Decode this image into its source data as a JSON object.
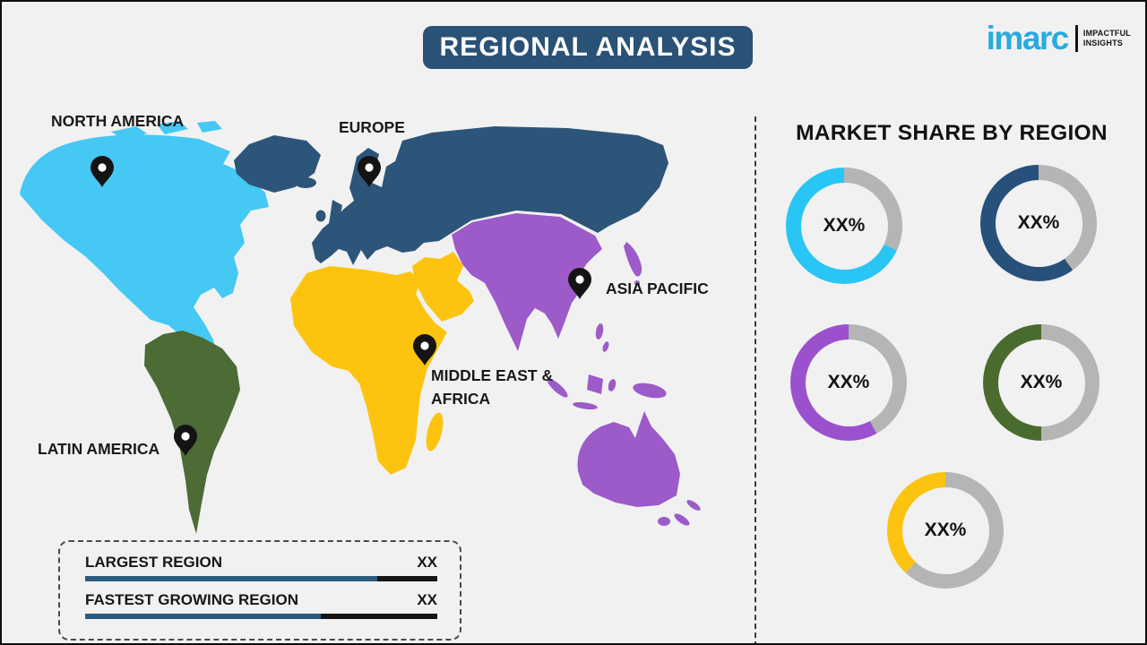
{
  "page": {
    "background": "#f1f1f2",
    "border_color": "#0f0f0f"
  },
  "header": {
    "title": "REGIONAL ANALYSIS",
    "banner_color": "#2a5176",
    "text_color": "#ffffff"
  },
  "logo": {
    "brand": "imarc",
    "brand_color": "#29aae1",
    "tagline_line1": "IMPACTFUL",
    "tagline_line2": "INSIGHTS",
    "tagline_color": "#141414"
  },
  "map": {
    "ocean_color": "#f1f1f2",
    "pin_color": "#141414",
    "regions": [
      {
        "id": "north-america",
        "label": "NORTH AMERICA",
        "color": "#45c8f3"
      },
      {
        "id": "europe",
        "label": "EUROPE",
        "color": "#2d5579"
      },
      {
        "id": "asia-pacific",
        "label": "ASIA PACIFIC",
        "color": "#9c5bc8"
      },
      {
        "id": "middle-east-africa",
        "label_line1": "MIDDLE EAST &",
        "label_line2": "AFRICA",
        "color": "#fcc40e"
      },
      {
        "id": "latin-america",
        "label": "LATIN AMERICA",
        "color": "#4c6b35"
      }
    ]
  },
  "stats_box": {
    "bar_fill_color": "#2a5a7e",
    "bar_track_color": "#141414",
    "rows": [
      {
        "label": "LARGEST REGION",
        "value": "XX",
        "fill_pct": 83
      },
      {
        "label": "FASTEST GROWING REGION",
        "value": "XX",
        "fill_pct": 67
      }
    ]
  },
  "market_share": {
    "title": "MARKET SHARE BY REGION",
    "track_color": "#b5b5b5",
    "donuts": [
      {
        "id": "north-america",
        "label": "XX%",
        "color": "#29c5f4",
        "gray_pct": 32
      },
      {
        "id": "europe",
        "label": "XX%",
        "color": "#27517b",
        "gray_pct": 40
      },
      {
        "id": "asia-pacific",
        "label": "XX%",
        "color": "#9b51ce",
        "gray_pct": 42
      },
      {
        "id": "latin-america",
        "label": "XX%",
        "color": "#4a6b2e",
        "gray_pct": 50
      },
      {
        "id": "middle-east-africa",
        "label": "XX%",
        "color": "#fcc410",
        "gray_pct": 62
      }
    ]
  }
}
